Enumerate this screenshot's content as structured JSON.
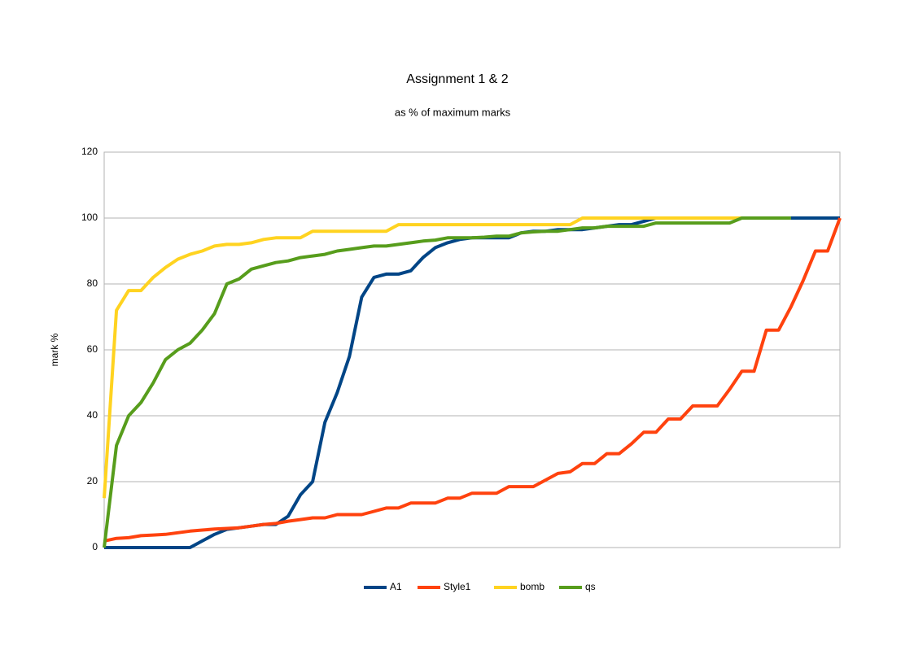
{
  "chart_data": {
    "type": "line",
    "title": "Assignment 1 & 2",
    "subtitle": "as % of maximum marks",
    "y_label": "mark %",
    "categories": [
      null,
      null,
      null,
      null,
      null,
      null,
      null,
      null,
      null,
      null,
      null,
      null,
      null,
      null,
      null,
      null,
      null,
      null,
      null,
      null,
      null,
      null,
      null,
      null,
      null,
      null,
      null,
      null,
      null,
      null,
      null,
      null,
      null,
      null,
      null,
      null,
      null,
      null,
      null,
      null,
      null,
      null,
      null,
      null,
      null,
      null,
      null,
      null,
      null,
      null,
      null,
      null,
      null,
      null,
      null,
      null,
      null,
      null,
      null,
      null,
      null
    ],
    "ylim": [
      0,
      120
    ],
    "yticks": [
      0,
      20,
      40,
      60,
      80,
      100,
      120
    ],
    "grid": true,
    "legend": "bottom",
    "series": [
      {
        "name": "A1",
        "color": "#004586",
        "values": [
          0,
          0,
          0,
          0,
          0,
          0,
          0,
          0,
          2,
          4,
          5.5,
          6,
          6.5,
          7,
          7,
          9.5,
          16,
          20,
          38,
          47,
          58,
          76,
          82,
          83,
          83,
          84,
          88,
          91,
          92.5,
          93.5,
          94,
          94,
          94,
          94,
          95.5,
          96,
          96,
          96.5,
          96.5,
          96.5,
          97,
          97.5,
          98,
          98,
          99,
          100,
          100,
          100,
          100,
          100,
          100,
          100,
          100,
          100,
          100,
          100,
          100,
          100,
          100,
          100,
          100
        ]
      },
      {
        "name": "Style1",
        "color": "#ff420e",
        "values": [
          2,
          2.8,
          3,
          3.6,
          3.8,
          4,
          4.5,
          5,
          5.3,
          5.6,
          5.8,
          6,
          6.5,
          7,
          7.3,
          8,
          8.5,
          9,
          9,
          10,
          10,
          10,
          11,
          12,
          12,
          13.5,
          13.5,
          13.5,
          15,
          15,
          16.5,
          16.5,
          16.5,
          18.5,
          18.5,
          18.5,
          20.5,
          22.5,
          23,
          25.5,
          25.5,
          28.5,
          28.5,
          31.5,
          35,
          35,
          39,
          39,
          43,
          43,
          43,
          48,
          53.5,
          53.5,
          66,
          66,
          73,
          81,
          90,
          90,
          100
        ]
      },
      {
        "name": "bomb",
        "color": "#ffd320",
        "values": [
          15,
          72,
          78,
          78,
          82,
          85,
          87.5,
          89,
          90,
          91.5,
          92,
          92,
          92.5,
          93.5,
          94,
          94,
          94,
          96,
          96,
          96,
          96,
          96,
          96,
          96,
          98,
          98,
          98,
          98,
          98,
          98,
          98,
          98,
          98,
          98,
          98,
          98,
          98,
          98,
          98,
          100,
          100,
          100,
          100,
          100,
          100,
          100,
          100,
          100,
          100,
          100,
          100,
          100,
          100,
          100,
          100,
          100,
          100,
          null,
          null,
          null,
          null
        ]
      },
      {
        "name": "qs",
        "color": "#579d1c",
        "values": [
          0,
          31,
          40,
          44,
          50,
          57,
          60,
          62,
          66,
          71,
          80,
          81.5,
          84.5,
          85.5,
          86.5,
          87,
          88,
          88.5,
          89,
          90,
          90.5,
          91,
          91.5,
          91.5,
          92,
          92.5,
          93,
          93.3,
          94,
          94,
          94,
          94.2,
          94.5,
          94.5,
          95.5,
          95.8,
          96,
          96,
          96.5,
          97,
          97,
          97.5,
          97.5,
          97.5,
          97.5,
          98.5,
          98.5,
          98.5,
          98.5,
          98.5,
          98.5,
          98.5,
          100,
          100,
          100,
          100,
          100,
          null,
          null,
          null,
          null
        ]
      }
    ]
  }
}
